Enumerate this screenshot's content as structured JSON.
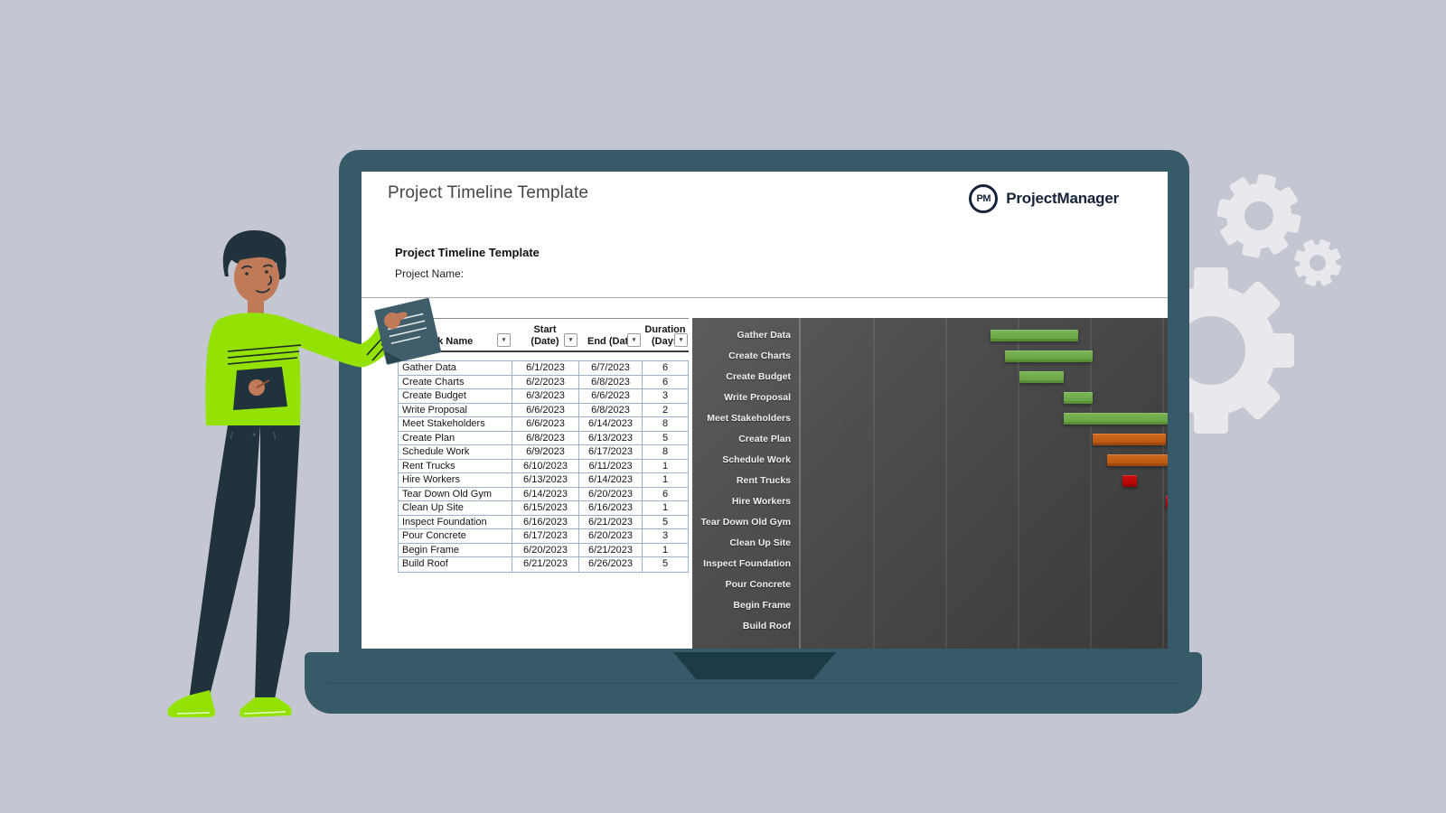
{
  "header": {
    "title": "Project Timeline Template",
    "logo_monogram": "PM",
    "brand": "ProjectManager"
  },
  "sheet": {
    "title": "Project Timeline Template",
    "project_name_label": "Project Name:"
  },
  "icons": {
    "filter_dropdown": "▾"
  },
  "table": {
    "columns": [
      {
        "line1": "",
        "line2": "Task Name"
      },
      {
        "line1": "Start",
        "line2": "(Date)"
      },
      {
        "line1": "",
        "line2": "End (Date"
      },
      {
        "line1": "Duration",
        "line2": "(Days"
      }
    ]
  },
  "tasks": [
    {
      "name": "Gather Data",
      "start": "6/1/2023",
      "end": "6/7/2023",
      "duration": "6"
    },
    {
      "name": "Create Charts",
      "start": "6/2/2023",
      "end": "6/8/2023",
      "duration": "6"
    },
    {
      "name": "Create Budget",
      "start": "6/3/2023",
      "end": "6/6/2023",
      "duration": "3"
    },
    {
      "name": "Write Proposal",
      "start": "6/6/2023",
      "end": "6/8/2023",
      "duration": "2"
    },
    {
      "name": "Meet Stakeholders",
      "start": "6/6/2023",
      "end": "6/14/2023",
      "duration": "8"
    },
    {
      "name": "Create Plan",
      "start": "6/8/2023",
      "end": "6/13/2023",
      "duration": "5"
    },
    {
      "name": "Schedule Work",
      "start": "6/9/2023",
      "end": "6/17/2023",
      "duration": "8"
    },
    {
      "name": "Rent Trucks",
      "start": "6/10/2023",
      "end": "6/11/2023",
      "duration": "1"
    },
    {
      "name": "Hire Workers",
      "start": "6/13/2023",
      "end": "6/14/2023",
      "duration": "1"
    },
    {
      "name": "Tear Down Old Gym",
      "start": "6/14/2023",
      "end": "6/20/2023",
      "duration": "6"
    },
    {
      "name": "Clean Up Site",
      "start": "6/15/2023",
      "end": "6/16/2023",
      "duration": "1"
    },
    {
      "name": "Inspect Foundation",
      "start": "6/16/2023",
      "end": "6/21/2023",
      "duration": "5"
    },
    {
      "name": "Pour Concrete",
      "start": "6/17/2023",
      "end": "6/20/2023",
      "duration": "3"
    },
    {
      "name": "Begin Frame",
      "start": "6/20/2023",
      "end": "6/21/2023",
      "duration": "1"
    },
    {
      "name": "Build Roof",
      "start": "6/21/2023",
      "end": "6/26/2023",
      "duration": "5"
    }
  ],
  "chart_data": {
    "type": "bar",
    "subtype": "horizontal-gantt",
    "title": "",
    "categories": [
      "Gather Data",
      "Create Charts",
      "Create Budget",
      "Write Proposal",
      "Meet Stakeholders",
      "Create Plan",
      "Schedule Work",
      "Rent Trucks",
      "Hire Workers",
      "Tear Down Old Gym",
      "Clean Up Site",
      "Inspect Foundation",
      "Pour Concrete",
      "Begin Frame",
      "Build Roof"
    ],
    "series": [
      {
        "name": "Start (Date)",
        "values": [
          "6/1/2023",
          "6/2/2023",
          "6/3/2023",
          "6/6/2023",
          "6/6/2023",
          "6/8/2023",
          "6/9/2023",
          "6/10/2023",
          "6/13/2023",
          "6/14/2023",
          "6/15/2023",
          "6/16/2023",
          "6/17/2023",
          "6/20/2023",
          "6/21/2023"
        ]
      },
      {
        "name": "Duration (Days)",
        "values": [
          6,
          6,
          3,
          2,
          8,
          5,
          8,
          1,
          1,
          6,
          1,
          5,
          3,
          1,
          5
        ]
      }
    ],
    "bar_colors": [
      "#70ad47",
      "#70ad47",
      "#70ad47",
      "#70ad47",
      "#70ad47",
      "#c55a11",
      "#c55a11",
      "#c00000",
      "#c00000",
      null,
      null,
      null,
      null,
      null,
      null
    ],
    "legend": false,
    "grid": true,
    "plot_background": "#4a4a4a",
    "note_bars_clipped_at_right_edge": true
  },
  "colors": {
    "background": "#c4c7d1",
    "laptop_frame": "#365a68",
    "laptop_notch": "#1d3a47",
    "gear": "#e8e9ed",
    "brand_navy": "#16243a",
    "table_border": "#9fb1d1",
    "gantt_bg": "#4a4a4a",
    "bar_green": "#70ad47",
    "bar_orange": "#c55a11",
    "bar_red": "#c00000",
    "person_shirt": "#94e203",
    "person_skin": "#c07a58",
    "person_dark": "#20323c"
  }
}
